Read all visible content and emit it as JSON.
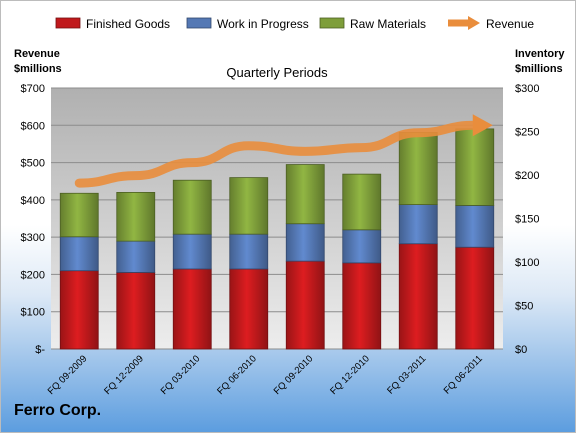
{
  "chart_data": {
    "type": "bar",
    "stacked": true,
    "title": "Quarterly Periods",
    "left_axis_label_line1": "Revenue",
    "left_axis_label_line2": "$millions",
    "right_axis_label_line1": "Inventory",
    "right_axis_label_line2": "$millions",
    "categories": [
      "FQ 09-2009",
      "FQ 12-2009",
      "FQ 03-2010",
      "FQ 06-2010",
      "FQ 09-2010",
      "FQ 12-2010",
      "FQ 03-2011",
      "FQ 06-2011"
    ],
    "left_ticks": [
      "$-",
      "$100",
      "$200",
      "$300",
      "$400",
      "$500",
      "$600",
      "$700"
    ],
    "right_ticks": [
      "$0",
      "$50",
      "$100",
      "$150",
      "$200",
      "$250",
      "$300"
    ],
    "ylim_left": [
      0,
      700
    ],
    "ylim_right": [
      0,
      300
    ],
    "series": [
      {
        "name": "Finished Goods",
        "color": "#c0191c",
        "axis": "right",
        "values": [
          90,
          88,
          92,
          92,
          101,
          99,
          121,
          117
        ]
      },
      {
        "name": "Work in Progress",
        "color": "#5478b4",
        "axis": "right",
        "values": [
          39,
          36,
          40,
          40,
          43,
          38,
          45,
          48
        ]
      },
      {
        "name": "Raw Materials",
        "color": "#7e9e3a",
        "axis": "right",
        "values": [
          50,
          56,
          62,
          65,
          68,
          64,
          83,
          88
        ]
      },
      {
        "name": "Revenue",
        "color": "#e98d3c",
        "type": "line",
        "axis": "left",
        "values": [
          445,
          465,
          500,
          545,
          530,
          540,
          580,
          600
        ]
      }
    ],
    "grid": true,
    "legend_position": "top"
  },
  "footer": {
    "company": "Ferro Corp."
  }
}
